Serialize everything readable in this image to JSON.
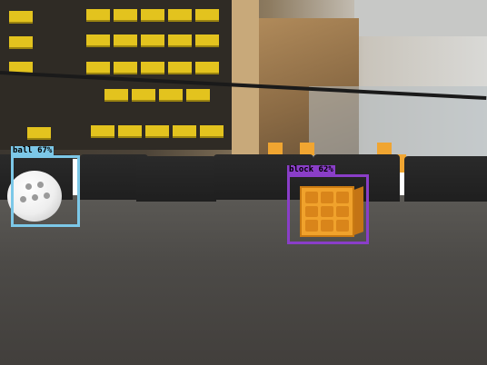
{
  "detections": [
    {
      "label": "ball 67%",
      "color": "#7cc8e8"
    },
    {
      "label": "block 62%",
      "color": "#8a3ec8"
    }
  ]
}
